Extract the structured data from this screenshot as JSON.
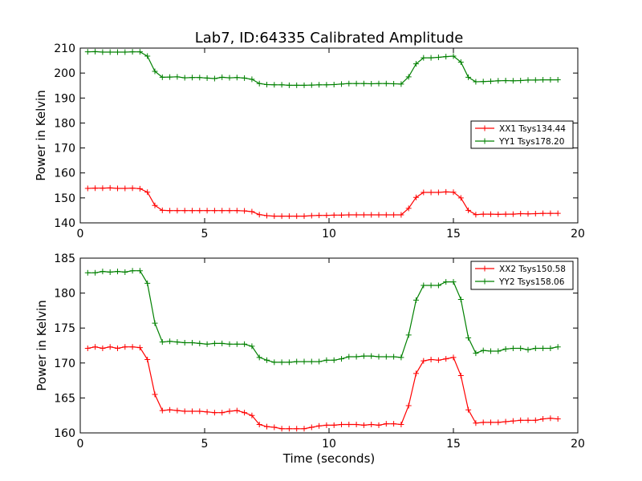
{
  "chart_data": [
    {
      "type": "line",
      "title": "Lab7, ID:64335 Calibrated Amplitude",
      "xlabel": "",
      "ylabel": "Power in Kelvin",
      "xlim": [
        0,
        20
      ],
      "ylim": [
        140,
        210
      ],
      "xticks": [
        0,
        5,
        10,
        15,
        20
      ],
      "yticks": [
        140,
        150,
        160,
        170,
        180,
        190,
        200,
        210
      ],
      "grid": false,
      "legend_position": "center-right",
      "x": [
        0.3,
        0.6,
        0.9,
        1.2,
        1.5,
        1.8,
        2.1,
        2.4,
        2.7,
        3.0,
        3.3,
        3.6,
        3.9,
        4.2,
        4.5,
        4.8,
        5.1,
        5.4,
        5.7,
        6.0,
        6.3,
        6.6,
        6.9,
        7.2,
        7.5,
        7.8,
        8.1,
        8.4,
        8.7,
        9.0,
        9.3,
        9.6,
        9.9,
        10.2,
        10.5,
        10.8,
        11.1,
        11.4,
        11.7,
        12.0,
        12.3,
        12.6,
        12.9,
        13.2,
        13.5,
        13.8,
        14.1,
        14.4,
        14.7,
        15.0,
        15.3,
        15.6,
        15.9,
        16.2,
        16.5,
        16.8,
        17.1,
        17.4,
        17.7,
        18.0,
        18.3,
        18.6,
        18.9,
        19.2
      ],
      "series": [
        {
          "name": "XX1 Tsys134.44",
          "color": "#ff0000",
          "values": [
            153.8,
            153.9,
            153.9,
            154.0,
            153.8,
            153.8,
            153.9,
            153.7,
            152.3,
            147.0,
            145.0,
            144.9,
            144.9,
            144.9,
            144.9,
            144.9,
            144.9,
            144.9,
            144.9,
            144.9,
            144.9,
            144.8,
            144.5,
            143.3,
            142.9,
            142.7,
            142.7,
            142.7,
            142.7,
            142.7,
            142.9,
            143.0,
            143.0,
            143.1,
            143.1,
            143.2,
            143.2,
            143.2,
            143.2,
            143.2,
            143.2,
            143.2,
            143.2,
            145.8,
            150.2,
            152.2,
            152.2,
            152.2,
            152.4,
            152.3,
            150.0,
            145.0,
            143.3,
            143.5,
            143.5,
            143.4,
            143.5,
            143.5,
            143.7,
            143.6,
            143.7,
            143.8,
            143.8,
            143.8
          ]
        },
        {
          "name": "YY1 Tsys178.20",
          "color": "#008000",
          "values": [
            208.5,
            208.6,
            208.4,
            208.4,
            208.4,
            208.4,
            208.5,
            208.5,
            206.8,
            200.7,
            198.3,
            198.4,
            198.5,
            198.1,
            198.2,
            198.2,
            198.0,
            197.8,
            198.3,
            198.1,
            198.2,
            198.0,
            197.5,
            195.8,
            195.4,
            195.3,
            195.3,
            195.1,
            195.1,
            195.1,
            195.2,
            195.3,
            195.3,
            195.4,
            195.6,
            195.8,
            195.8,
            195.8,
            195.7,
            195.8,
            195.8,
            195.7,
            195.6,
            198.5,
            203.7,
            206.1,
            206.1,
            206.3,
            206.6,
            206.8,
            204.4,
            198.3,
            196.5,
            196.6,
            196.7,
            196.9,
            197.0,
            196.9,
            197.0,
            197.2,
            197.2,
            197.3,
            197.3,
            197.3
          ]
        }
      ]
    },
    {
      "type": "line",
      "title": "",
      "xlabel": "Time (seconds)",
      "ylabel": "Power in Kelvin",
      "xlim": [
        0,
        20
      ],
      "ylim": [
        160,
        185
      ],
      "xticks": [
        0,
        5,
        10,
        15,
        20
      ],
      "yticks": [
        160,
        165,
        170,
        175,
        180,
        185
      ],
      "grid": false,
      "legend_position": "top-right",
      "x": [
        0.3,
        0.6,
        0.9,
        1.2,
        1.5,
        1.8,
        2.1,
        2.4,
        2.7,
        3.0,
        3.3,
        3.6,
        3.9,
        4.2,
        4.5,
        4.8,
        5.1,
        5.4,
        5.7,
        6.0,
        6.3,
        6.6,
        6.9,
        7.2,
        7.5,
        7.8,
        8.1,
        8.4,
        8.7,
        9.0,
        9.3,
        9.6,
        9.9,
        10.2,
        10.5,
        10.8,
        11.1,
        11.4,
        11.7,
        12.0,
        12.3,
        12.6,
        12.9,
        13.2,
        13.5,
        13.8,
        14.1,
        14.4,
        14.7,
        15.0,
        15.3,
        15.6,
        15.9,
        16.2,
        16.5,
        16.8,
        17.1,
        17.4,
        17.7,
        18.0,
        18.3,
        18.6,
        18.9,
        19.2
      ],
      "series": [
        {
          "name": "XX2 Tsys150.58",
          "color": "#ff0000",
          "values": [
            172.1,
            172.3,
            172.1,
            172.3,
            172.1,
            172.3,
            172.3,
            172.2,
            170.5,
            165.5,
            163.2,
            163.3,
            163.2,
            163.1,
            163.1,
            163.1,
            163.0,
            162.9,
            162.9,
            163.1,
            163.2,
            162.9,
            162.5,
            161.2,
            160.9,
            160.8,
            160.6,
            160.6,
            160.6,
            160.6,
            160.8,
            161.0,
            161.1,
            161.1,
            161.2,
            161.2,
            161.2,
            161.1,
            161.2,
            161.1,
            161.3,
            161.3,
            161.2,
            163.9,
            168.5,
            170.3,
            170.5,
            170.4,
            170.6,
            170.8,
            168.2,
            163.3,
            161.4,
            161.5,
            161.5,
            161.5,
            161.6,
            161.7,
            161.8,
            161.8,
            161.8,
            162.0,
            162.1,
            162.0
          ]
        },
        {
          "name": "YY2 Tsys158.06",
          "color": "#008000",
          "values": [
            182.9,
            182.9,
            183.1,
            183.0,
            183.1,
            183.0,
            183.2,
            183.2,
            181.4,
            175.7,
            173.0,
            173.1,
            173.0,
            172.9,
            172.9,
            172.8,
            172.7,
            172.8,
            172.8,
            172.7,
            172.7,
            172.7,
            172.4,
            170.8,
            170.4,
            170.1,
            170.1,
            170.1,
            170.2,
            170.2,
            170.2,
            170.2,
            170.4,
            170.4,
            170.6,
            170.9,
            170.9,
            171.0,
            171.0,
            170.9,
            170.9,
            170.9,
            170.8,
            174.0,
            179.0,
            181.1,
            181.1,
            181.1,
            181.6,
            181.6,
            179.1,
            173.6,
            171.4,
            171.8,
            171.7,
            171.7,
            172.0,
            172.1,
            172.1,
            171.9,
            172.1,
            172.1,
            172.1,
            172.3
          ]
        }
      ]
    }
  ]
}
